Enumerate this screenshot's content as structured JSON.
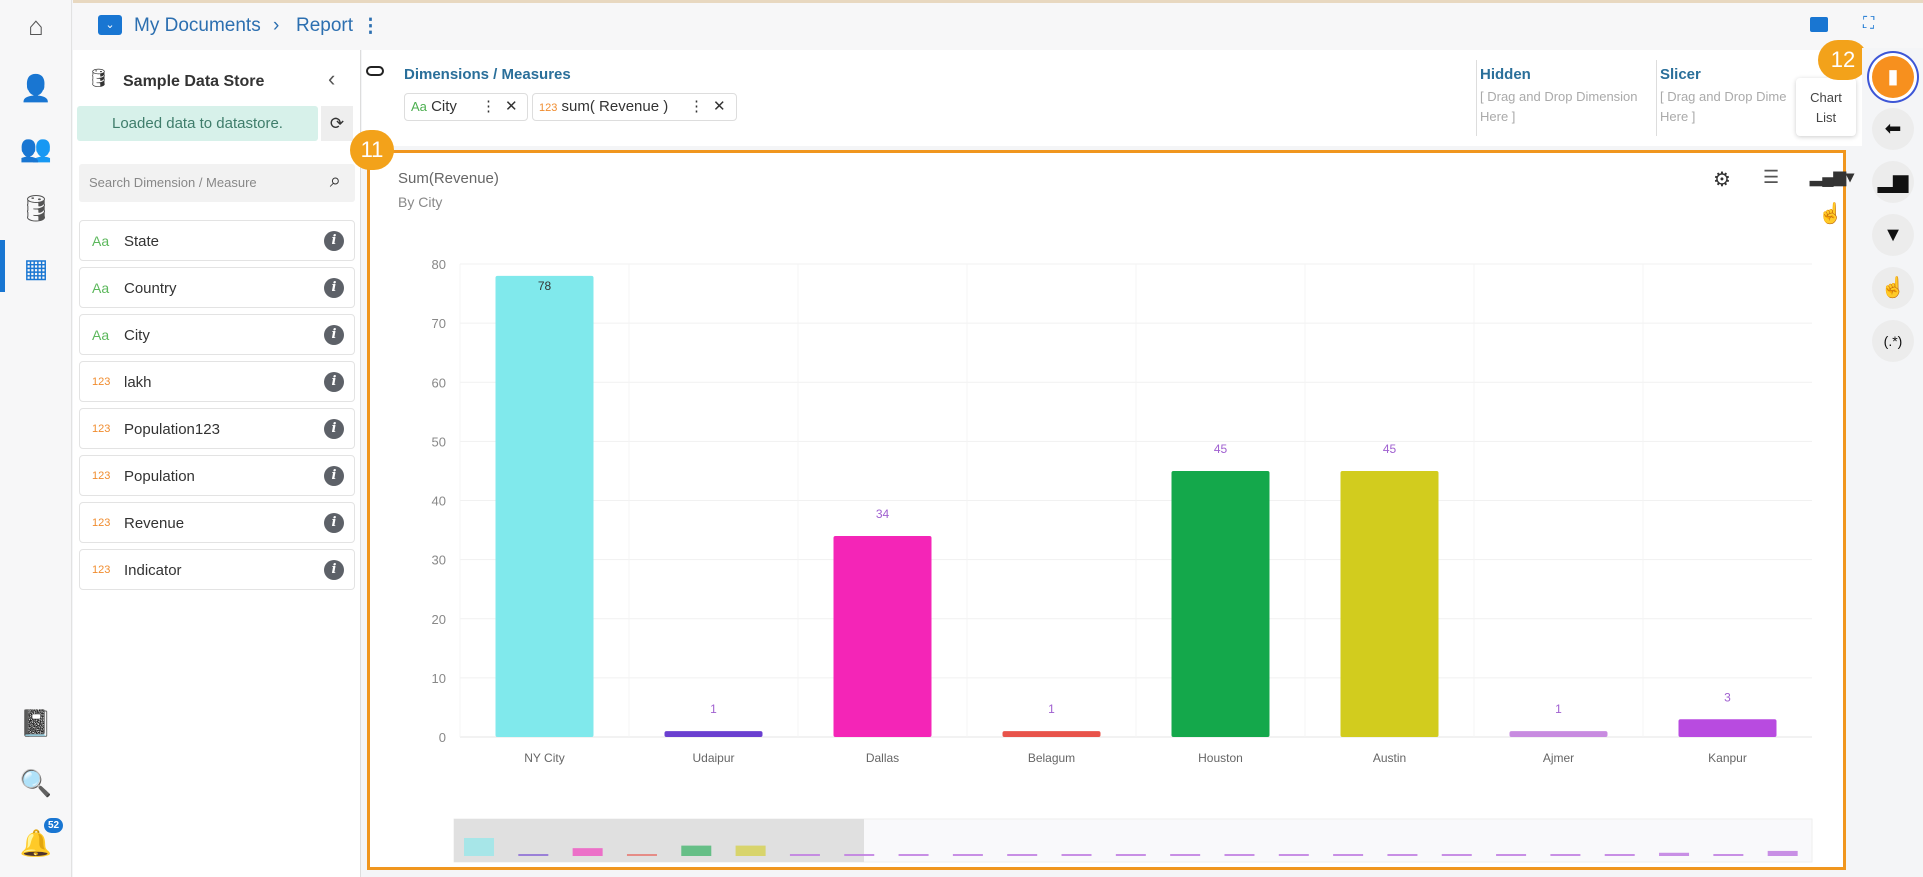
{
  "breadcrumb": {
    "root": "My Documents",
    "current": "Report"
  },
  "nav": {
    "notifications_count": "52"
  },
  "datastore": {
    "title": "Sample Data Store",
    "status": "Loaded data to datastore.",
    "search_placeholder": "Search Dimension / Measure",
    "fields": [
      {
        "type": "Aa",
        "name": "State"
      },
      {
        "type": "Aa",
        "name": "Country"
      },
      {
        "type": "Aa",
        "name": "City"
      },
      {
        "type": "123",
        "name": "lakh"
      },
      {
        "type": "123",
        "name": "Population123"
      },
      {
        "type": "123",
        "name": "Population"
      },
      {
        "type": "123",
        "name": "Revenue"
      },
      {
        "type": "123",
        "name": "Indicator"
      }
    ]
  },
  "dimensions": {
    "title": "Dimensions / Measures",
    "chips": [
      {
        "type": "Aa",
        "label": "City"
      },
      {
        "type": "123",
        "label": "sum( Revenue )"
      }
    ]
  },
  "hidden": {
    "title": "Hidden",
    "hint": "[ Drag and Drop Dimension Here ]"
  },
  "slicer": {
    "title": "Slicer",
    "hint": "[ Drag and Drop Dime Here ]"
  },
  "tooltip": {
    "text": "Chart List"
  },
  "callouts": {
    "a": "11",
    "b": "12"
  },
  "right_rail": {
    "regex_label": "(.*)"
  },
  "chart_data": {
    "type": "bar",
    "title": "Sum(Revenue)",
    "subtitle": "By City",
    "xlabel": "",
    "ylabel": "",
    "ylim": [
      0,
      80
    ],
    "yticks": [
      0,
      10,
      20,
      30,
      40,
      50,
      60,
      70,
      80
    ],
    "categories": [
      "NY City",
      "Udaipur",
      "Dallas",
      "Belagum",
      "Houston",
      "Austin",
      "Ajmer",
      "Kanpur"
    ],
    "values": [
      78,
      1,
      34,
      1,
      45,
      45,
      1,
      3
    ],
    "colors": [
      "#80e9ec",
      "#6a3fd0",
      "#f425b7",
      "#e8534a",
      "#14a84b",
      "#d2cc1e",
      "#c88be0",
      "#b84be0"
    ],
    "grid": true
  }
}
